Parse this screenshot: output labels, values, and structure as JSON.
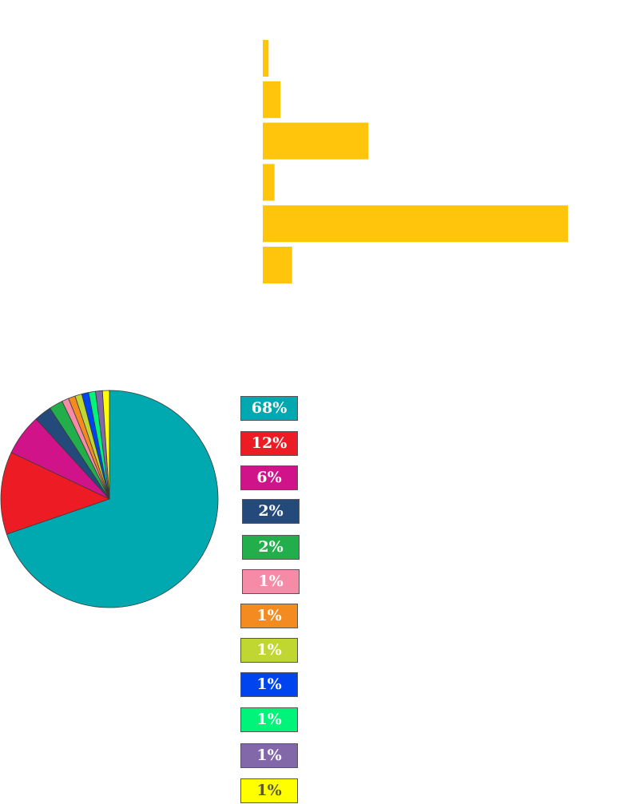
{
  "chart_data": [
    {
      "type": "bar",
      "orientation": "horizontal",
      "categories": [
        "",
        "",
        "",
        "",
        "",
        ""
      ],
      "values": [
        1,
        3,
        18,
        2,
        52,
        5
      ],
      "color": "#FFC50C",
      "title": "",
      "xlabel": "",
      "ylabel": "",
      "grid": false
    },
    {
      "type": "pie",
      "start": "top",
      "direction": "clockwise",
      "slices": [
        {
          "label": "68%",
          "value": 68,
          "color": "#00A8B0",
          "text_color": "#ffffff"
        },
        {
          "label": "12%",
          "value": 12,
          "color": "#ED1C24",
          "text_color": "#ffffff"
        },
        {
          "label": "6%",
          "value": 6,
          "color": "#D1138A",
          "text_color": "#ffffff"
        },
        {
          "label": "2%",
          "value": 2.5,
          "color": "#244A7C",
          "text_color": "#ffffff"
        },
        {
          "label": "2%",
          "value": 2,
          "color": "#22AF4B",
          "text_color": "#ffffff"
        },
        {
          "label": "1%",
          "value": 1,
          "color": "#F68BA8",
          "text_color": "#ffffff"
        },
        {
          "label": "1%",
          "value": 1,
          "color": "#F38B21",
          "text_color": "#ffffff"
        },
        {
          "label": "1%",
          "value": 1,
          "color": "#BFD730",
          "text_color": "#ffffff"
        },
        {
          "label": "1%",
          "value": 1,
          "color": "#0044F0",
          "text_color": "#ffffff"
        },
        {
          "label": "1%",
          "value": 1,
          "color": "#00F47A",
          "text_color": "#ffffff"
        },
        {
          "label": "1%",
          "value": 1,
          "color": "#8268A8",
          "text_color": "#ffffff"
        },
        {
          "label": "1%",
          "value": 1,
          "color": "#FFFF00",
          "text_color": "#555555"
        }
      ],
      "legend": "right"
    }
  ]
}
